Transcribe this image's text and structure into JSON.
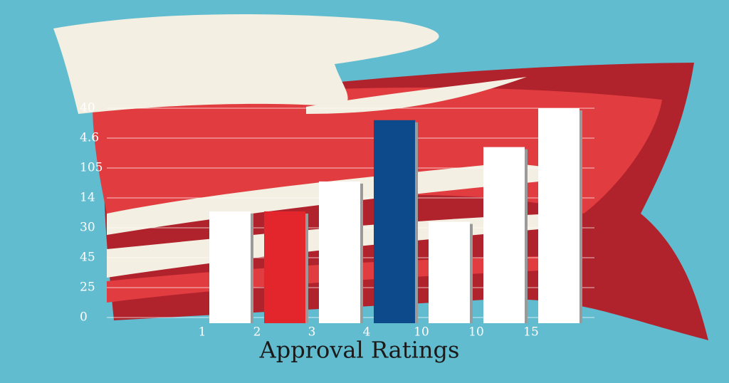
{
  "chart_data": {
    "type": "bar",
    "title": "Approval Ratings",
    "categories": [
      "1",
      "2",
      "3",
      "4",
      "10",
      "10",
      "15"
    ],
    "values": [
      3.55,
      3.55,
      4.55,
      6.6,
      3.2,
      5.7,
      7
    ],
    "colors": [
      "#ffffff",
      "#e3262b",
      "#ffffff",
      "#0d4a8c",
      "#ffffff",
      "#ffffff",
      "#ffffff"
    ],
    "ylim": [
      0,
      7
    ],
    "yticks": [
      {
        "value": 0,
        "label": "0"
      },
      {
        "value": 1,
        "label": "25"
      },
      {
        "value": 2,
        "label": "45"
      },
      {
        "value": 3,
        "label": "30"
      },
      {
        "value": 4,
        "label": "14"
      },
      {
        "value": 5,
        "label": "105"
      },
      {
        "value": 6,
        "label": "4.6"
      },
      {
        "value": 7,
        "label": "40"
      }
    ],
    "grid": true
  }
}
